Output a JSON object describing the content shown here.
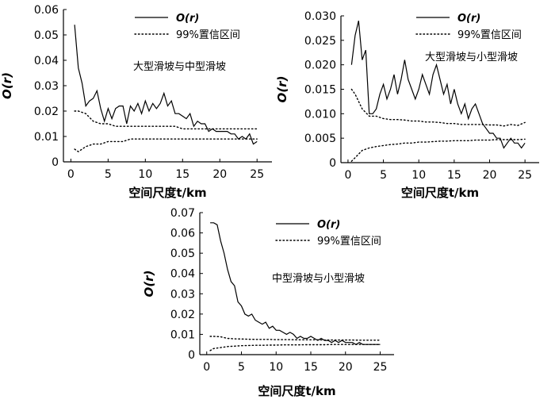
{
  "chart_data": [
    {
      "type": "line",
      "panel": "top-left",
      "ylabel": "O(r)",
      "xlabel": "空间尺度t/km",
      "xlim": [
        -1,
        27
      ],
      "ylim": [
        0,
        0.06
      ],
      "xticks": [
        0,
        5,
        10,
        15,
        20,
        25
      ],
      "yticks": [
        0,
        0.01,
        0.02,
        0.03,
        0.04,
        0.05,
        0.06
      ],
      "ytick_labels": [
        "0",
        "0.01",
        "0.02",
        "0.03",
        "0.04",
        "0.05",
        "0.06"
      ],
      "legend": [
        "O(r)",
        "99%置信区间"
      ],
      "annotation": "大型滑坡与中型滑坡",
      "series": [
        {
          "name": "O(r)",
          "style": "solid",
          "x": [
            0.5,
            1,
            1.5,
            2,
            2.5,
            3,
            3.5,
            4,
            4.5,
            5,
            5.5,
            6,
            6.5,
            7,
            7.5,
            8,
            8.5,
            9,
            9.5,
            10,
            10.5,
            11,
            11.5,
            12,
            12.5,
            13,
            13.5,
            14,
            14.5,
            15,
            15.5,
            16,
            16.5,
            17,
            17.5,
            18,
            18.5,
            19,
            19.5,
            20,
            20.5,
            21,
            21.5,
            22,
            22.5,
            23,
            23.5,
            24,
            24.5,
            25
          ],
          "y": [
            0.054,
            0.037,
            0.031,
            0.022,
            0.024,
            0.025,
            0.028,
            0.021,
            0.016,
            0.021,
            0.017,
            0.021,
            0.022,
            0.022,
            0.015,
            0.022,
            0.02,
            0.023,
            0.019,
            0.024,
            0.02,
            0.023,
            0.021,
            0.023,
            0.027,
            0.022,
            0.024,
            0.019,
            0.019,
            0.018,
            0.017,
            0.019,
            0.014,
            0.016,
            0.015,
            0.015,
            0.012,
            0.013,
            0.012,
            0.012,
            0.012,
            0.012,
            0.011,
            0.011,
            0.009,
            0.01,
            0.009,
            0.011,
            0.007,
            0.008
          ]
        },
        {
          "name": "99%置信区间 upper",
          "style": "dotted",
          "x": [
            0.5,
            1,
            2,
            3,
            4,
            5,
            6,
            7,
            8,
            9,
            10,
            11,
            12,
            13,
            14,
            15,
            16,
            17,
            18,
            19,
            20,
            21,
            22,
            23,
            24,
            25
          ],
          "y": [
            0.02,
            0.02,
            0.019,
            0.016,
            0.015,
            0.015,
            0.014,
            0.014,
            0.014,
            0.014,
            0.014,
            0.014,
            0.014,
            0.014,
            0.014,
            0.013,
            0.013,
            0.013,
            0.013,
            0.013,
            0.013,
            0.013,
            0.013,
            0.013,
            0.013,
            0.013
          ]
        },
        {
          "name": "99%置信区间 lower",
          "style": "dotted",
          "x": [
            0.5,
            1,
            2,
            3,
            4,
            5,
            6,
            7,
            8,
            9,
            10,
            11,
            12,
            13,
            14,
            15,
            16,
            17,
            18,
            19,
            20,
            21,
            22,
            23,
            24,
            25
          ],
          "y": [
            0.005,
            0.004,
            0.006,
            0.007,
            0.007,
            0.008,
            0.008,
            0.008,
            0.009,
            0.009,
            0.009,
            0.009,
            0.009,
            0.009,
            0.009,
            0.009,
            0.009,
            0.009,
            0.009,
            0.009,
            0.009,
            0.009,
            0.009,
            0.009,
            0.009,
            0.009
          ]
        }
      ]
    },
    {
      "type": "line",
      "panel": "top-right",
      "ylabel": "O(r)",
      "xlabel": "空间尺度t/km",
      "xlim": [
        -1,
        27
      ],
      "ylim": [
        0,
        0.03
      ],
      "xticks": [
        0,
        5,
        10,
        15,
        20,
        25
      ],
      "yticks": [
        0,
        0.005,
        0.01,
        0.015,
        0.02,
        0.025,
        0.03
      ],
      "ytick_labels": [
        "0",
        "0.005",
        "0.010",
        "0.015",
        "0.020",
        "0.025",
        "0.030"
      ],
      "legend": [
        "O(r)",
        "99%置信区间"
      ],
      "annotation": "大型滑坡与小型滑坡",
      "series": [
        {
          "name": "O(r)",
          "style": "solid",
          "x": [
            0.5,
            1,
            1.5,
            2,
            2.5,
            3,
            3.5,
            4,
            4.5,
            5,
            5.5,
            6,
            6.5,
            7,
            7.5,
            8,
            8.5,
            9,
            9.5,
            10,
            10.5,
            11,
            11.5,
            12,
            12.5,
            13,
            13.5,
            14,
            14.5,
            15,
            15.5,
            16,
            16.5,
            17,
            17.5,
            18,
            18.5,
            19,
            19.5,
            20,
            20.5,
            21,
            21.5,
            22,
            22.5,
            23,
            23.5,
            24,
            24.5,
            25
          ],
          "y": [
            0.02,
            0.026,
            0.029,
            0.021,
            0.023,
            0.01,
            0.01,
            0.011,
            0.014,
            0.016,
            0.013,
            0.015,
            0.018,
            0.014,
            0.017,
            0.021,
            0.017,
            0.015,
            0.013,
            0.015,
            0.018,
            0.016,
            0.014,
            0.018,
            0.02,
            0.017,
            0.014,
            0.016,
            0.012,
            0.015,
            0.012,
            0.01,
            0.012,
            0.009,
            0.011,
            0.012,
            0.01,
            0.008,
            0.007,
            0.006,
            0.006,
            0.005,
            0.005,
            0.003,
            0.004,
            0.005,
            0.004,
            0.004,
            0.003,
            0.004
          ]
        },
        {
          "name": "99%置信区间 upper",
          "style": "dotted",
          "x": [
            0.5,
            1,
            2,
            3,
            4,
            5,
            6,
            7,
            8,
            9,
            10,
            11,
            12,
            13,
            14,
            15,
            16,
            17,
            18,
            19,
            20,
            21,
            22,
            23,
            24,
            25
          ],
          "y": [
            0.015,
            0.014,
            0.011,
            0.0095,
            0.0095,
            0.009,
            0.0088,
            0.0088,
            0.0087,
            0.0085,
            0.0085,
            0.0083,
            0.0083,
            0.0082,
            0.008,
            0.008,
            0.0078,
            0.0078,
            0.0078,
            0.0078,
            0.0077,
            0.0077,
            0.0075,
            0.0078,
            0.0076,
            0.0082
          ]
        },
        {
          "name": "99%置信区间 lower",
          "style": "dotted",
          "x": [
            0.5,
            1,
            2,
            3,
            4,
            5,
            6,
            7,
            8,
            9,
            10,
            11,
            12,
            13,
            14,
            15,
            16,
            17,
            18,
            19,
            20,
            21,
            22,
            23,
            24,
            25
          ],
          "y": [
            0.0003,
            0.001,
            0.0025,
            0.003,
            0.0033,
            0.0035,
            0.0037,
            0.0038,
            0.004,
            0.004,
            0.0042,
            0.0042,
            0.0043,
            0.0044,
            0.0044,
            0.0045,
            0.0045,
            0.0045,
            0.0046,
            0.0046,
            0.0046,
            0.0047,
            0.0047,
            0.0047,
            0.0047,
            0.0048
          ]
        }
      ]
    },
    {
      "type": "line",
      "panel": "bottom-center",
      "ylabel": "O(r)",
      "xlabel": "空间尺度t/km",
      "xlim": [
        -1,
        27
      ],
      "ylim": [
        0,
        0.07
      ],
      "xticks": [
        0,
        5,
        10,
        15,
        20,
        25
      ],
      "yticks": [
        0,
        0.01,
        0.02,
        0.03,
        0.04,
        0.05,
        0.06,
        0.07
      ],
      "ytick_labels": [
        "0",
        "0.01",
        "0.02",
        "0.03",
        "0.04",
        "0.05",
        "0.06",
        "0.07"
      ],
      "legend": [
        "O(r)",
        "99%置信区间"
      ],
      "annotation": "中型滑坡与小型滑坡",
      "series": [
        {
          "name": "O(r)",
          "style": "solid",
          "x": [
            0.5,
            1,
            1.5,
            2,
            2.5,
            3,
            3.5,
            4,
            4.5,
            5,
            5.5,
            6,
            6.5,
            7,
            7.5,
            8,
            8.5,
            9,
            9.5,
            10,
            10.5,
            11,
            11.5,
            12,
            12.5,
            13,
            13.5,
            14,
            14.5,
            15,
            15.5,
            16,
            16.5,
            17,
            17.5,
            18,
            18.5,
            19,
            19.5,
            20,
            20.5,
            21,
            21.5,
            22,
            22.5,
            23,
            23.5,
            24,
            24.5,
            25
          ],
          "y": [
            0.065,
            0.065,
            0.064,
            0.056,
            0.05,
            0.042,
            0.036,
            0.034,
            0.026,
            0.024,
            0.02,
            0.019,
            0.02,
            0.017,
            0.016,
            0.015,
            0.016,
            0.013,
            0.014,
            0.012,
            0.012,
            0.011,
            0.01,
            0.011,
            0.01,
            0.008,
            0.009,
            0.008,
            0.008,
            0.009,
            0.008,
            0.007,
            0.008,
            0.007,
            0.007,
            0.006,
            0.007,
            0.006,
            0.007,
            0.006,
            0.006,
            0.006,
            0.005,
            0.006,
            0.005,
            0.005,
            0.005,
            0.005,
            0.005,
            0.005
          ]
        },
        {
          "name": "99%置信区间 upper",
          "style": "dotted",
          "x": [
            0.5,
            1,
            2,
            3,
            4,
            5,
            6,
            7,
            8,
            9,
            10,
            11,
            12,
            13,
            14,
            15,
            16,
            17,
            18,
            19,
            20,
            21,
            22,
            23,
            24,
            25
          ],
          "y": [
            0.009,
            0.009,
            0.0088,
            0.008,
            0.0078,
            0.0077,
            0.0076,
            0.0075,
            0.0075,
            0.0075,
            0.0074,
            0.0074,
            0.0074,
            0.0073,
            0.0073,
            0.0073,
            0.0073,
            0.0072,
            0.0072,
            0.0072,
            0.0072,
            0.0072,
            0.0071,
            0.0071,
            0.0071,
            0.0071
          ]
        },
        {
          "name": "99%置信区间 lower",
          "style": "dotted",
          "x": [
            0.5,
            1,
            2,
            3,
            4,
            5,
            6,
            7,
            8,
            9,
            10,
            11,
            12,
            13,
            14,
            15,
            16,
            17,
            18,
            19,
            20,
            21,
            22,
            23,
            24,
            25
          ],
          "y": [
            0.002,
            0.003,
            0.0035,
            0.004,
            0.0042,
            0.0044,
            0.0045,
            0.0046,
            0.0046,
            0.0047,
            0.0047,
            0.0048,
            0.0048,
            0.0048,
            0.0049,
            0.0049,
            0.0049,
            0.0049,
            0.005,
            0.005,
            0.005,
            0.005,
            0.005,
            0.005,
            0.005,
            0.005
          ]
        }
      ]
    }
  ]
}
